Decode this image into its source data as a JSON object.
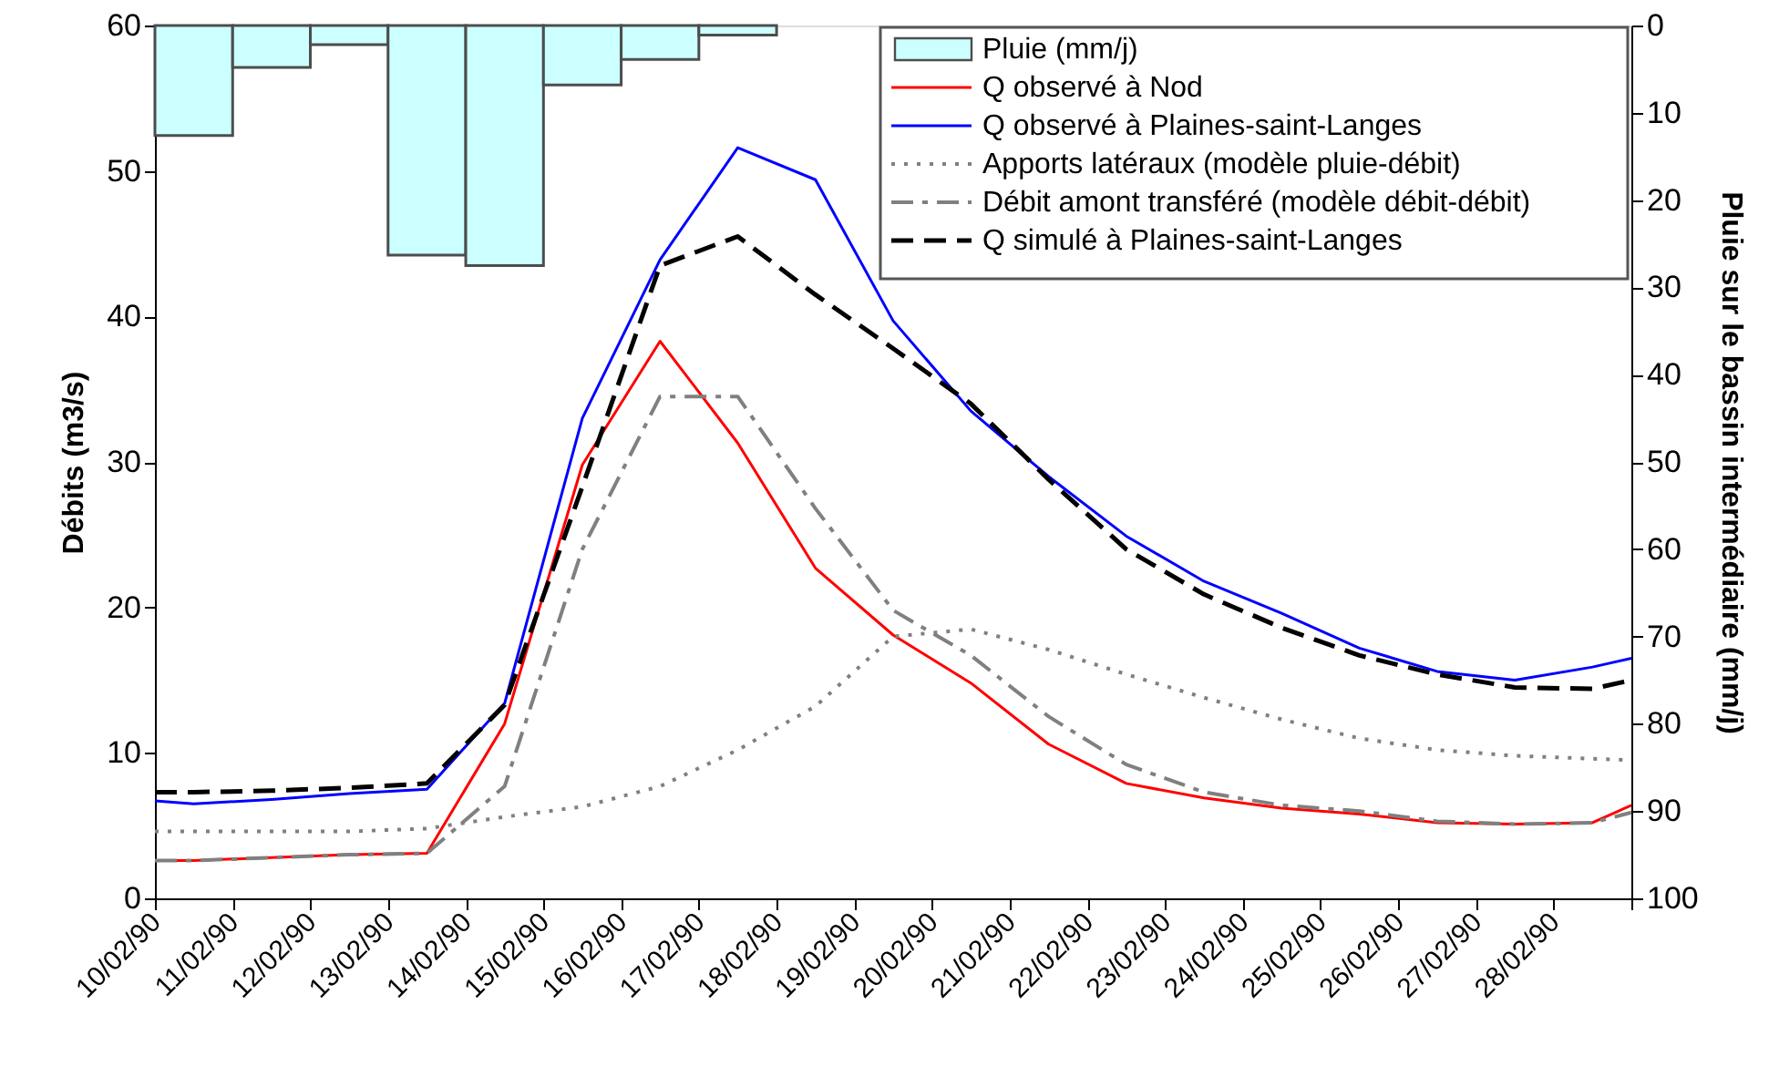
{
  "chart_data": {
    "type": "line",
    "ylabel": "Débits (m3/s)",
    "y2label": "Pluie sur le bassin intermédiaire (mm/j)",
    "x": [
      "1990-02-10T00:00",
      "1990-02-10T12:00",
      "1990-02-11T12:00",
      "1990-02-12T12:00",
      "1990-02-13T12:00",
      "1990-02-14T12:00",
      "1990-02-15T12:00",
      "1990-02-16T12:00",
      "1990-02-17T12:00",
      "1990-02-18T12:00",
      "1990-02-19T12:00",
      "1990-02-20T12:00",
      "1990-02-21T12:00",
      "1990-02-22T12:00",
      "1990-02-23T12:00",
      "1990-02-24T12:00",
      "1990-02-25T12:00",
      "1990-02-26T12:00",
      "1990-02-27T12:00",
      "1990-02-28T12:00",
      "1990-03-01T00:00"
    ],
    "xlim": [
      "1990-02-10",
      "1990-03-01"
    ],
    "xticks": [
      {
        "value": "1990-02-10",
        "label": "10/02/90"
      },
      {
        "value": "1990-02-11",
        "label": "11/02/90"
      },
      {
        "value": "1990-02-12",
        "label": "12/02/90"
      },
      {
        "value": "1990-02-13",
        "label": "13/02/90"
      },
      {
        "value": "1990-02-14",
        "label": "14/02/90"
      },
      {
        "value": "1990-02-15",
        "label": "15/02/90"
      },
      {
        "value": "1990-02-16",
        "label": "16/02/90"
      },
      {
        "value": "1990-02-17",
        "label": "17/02/90"
      },
      {
        "value": "1990-02-18",
        "label": "18/02/90"
      },
      {
        "value": "1990-02-19",
        "label": "19/02/90"
      },
      {
        "value": "1990-02-20",
        "label": "20/02/90"
      },
      {
        "value": "1990-02-21",
        "label": "21/02/90"
      },
      {
        "value": "1990-02-22",
        "label": "22/02/90"
      },
      {
        "value": "1990-02-23",
        "label": "23/02/90"
      },
      {
        "value": "1990-02-24",
        "label": "24/02/90"
      },
      {
        "value": "1990-02-25",
        "label": "25/02/90"
      },
      {
        "value": "1990-02-26",
        "label": "26/02/90"
      },
      {
        "value": "1990-02-27",
        "label": "27/02/90"
      },
      {
        "value": "1990-02-28",
        "label": "28/02/90"
      },
      {
        "value": "1990-03-01",
        "label": null
      }
    ],
    "ylim": [
      0,
      60
    ],
    "yticks": [
      0,
      10,
      20,
      30,
      40,
      50,
      60
    ],
    "y2lim": [
      100,
      0
    ],
    "y2ticks": [
      0,
      10,
      20,
      30,
      40,
      50,
      60,
      70,
      80,
      90,
      100
    ],
    "grid": false,
    "legend": "top right",
    "series": [
      {
        "name": "Pluie (mm/j)",
        "type": "bar",
        "axis": "y2",
        "color": "#ccffff",
        "x": [
          "1990-02-10T12:00",
          "1990-02-11T12:00",
          "1990-02-12T12:00",
          "1990-02-13T12:00",
          "1990-02-14T12:00",
          "1990-02-15T12:00",
          "1990-02-16T12:00",
          "1990-02-17T12:00"
        ],
        "values": [
          12.6,
          4.8,
          2.2,
          26.3,
          27.5,
          6.8,
          3.9,
          1.1
        ]
      },
      {
        "name": "Q observé à  Nod",
        "line_style": "solid",
        "color": "#ff0000",
        "values": [
          2.6,
          2.6,
          2.8,
          3.0,
          3.1,
          12.0,
          29.8,
          38.3,
          31.3,
          22.7,
          18.1,
          14.8,
          10.6,
          7.9,
          6.9,
          6.2,
          5.8,
          5.2,
          5.1,
          5.2,
          6.4
        ]
      },
      {
        "name": "Q observé à  Plaines-saint-Langes",
        "line_style": "solid",
        "color": "#0000ff",
        "values": [
          6.7,
          6.5,
          6.8,
          7.2,
          7.5,
          13.4,
          33.0,
          43.9,
          51.6,
          49.4,
          39.7,
          33.5,
          29.0,
          24.9,
          21.8,
          19.6,
          17.2,
          15.6,
          15.0,
          15.9,
          16.5
        ]
      },
      {
        "name": "Apports latéraux (modèle pluie-débit)",
        "line_style": "dotted",
        "color": "#808080",
        "values": [
          4.6,
          4.6,
          4.6,
          4.6,
          4.8,
          5.6,
          6.3,
          7.7,
          10.2,
          13.2,
          18.0,
          18.5,
          17.1,
          15.4,
          13.8,
          12.3,
          11.0,
          10.2,
          9.8,
          9.6,
          9.5
        ]
      },
      {
        "name": "Débit amont transféré (modèle débit-débit)",
        "line_style": "dashdot",
        "color": "#808080",
        "values": [
          2.6,
          2.6,
          2.8,
          3.0,
          3.1,
          7.7,
          24.0,
          34.5,
          34.5,
          26.8,
          19.8,
          16.7,
          12.5,
          9.2,
          7.3,
          6.4,
          6.0,
          5.3,
          5.1,
          5.2,
          5.9
        ]
      },
      {
        "name": "Q simulé à  Plaines-saint-Langes",
        "line_style": "dashed",
        "color": "#000000",
        "values": [
          7.3,
          7.3,
          7.4,
          7.6,
          7.9,
          13.3,
          28.3,
          43.5,
          45.5,
          41.5,
          37.8,
          34.0,
          28.8,
          24.0,
          20.9,
          18.6,
          16.7,
          15.4,
          14.5,
          14.4,
          15.0
        ]
      }
    ]
  }
}
